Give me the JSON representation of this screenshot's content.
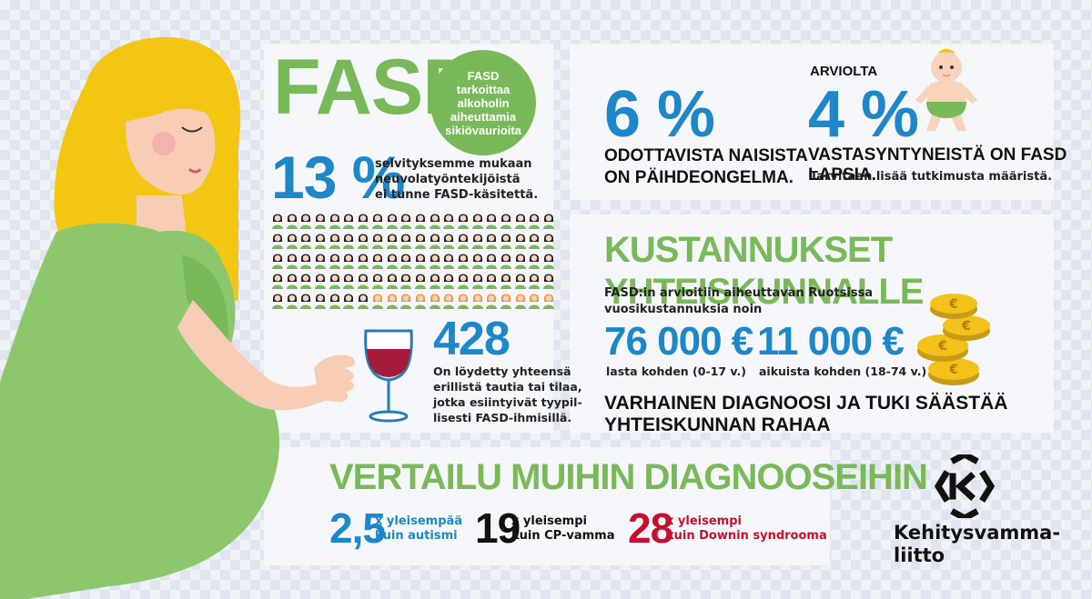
{
  "colors": {
    "green": "#79b95a",
    "blue": "#1d87c9",
    "red": "#c8102e",
    "orange": "#f0963c",
    "hair": "#f2c613"
  },
  "fasd": {
    "title": "FASD",
    "circle_text": "FASD tarkoittaa alkoholin aiheuttamia sikiövaurioita"
  },
  "stat13": {
    "value": "13 %",
    "text_lines": [
      "selvityksemme mukaan",
      "neuvolatyöntekijöistä",
      "ei tunne FASD-käsitettä."
    ]
  },
  "people_grid": {
    "total": 100,
    "highlighted": 13
  },
  "stat428": {
    "value": "428",
    "text_lines": [
      "On löydetty yhteensä",
      "erillistä tautia tai tilaa,",
      "jotka esiintyivät tyypil-",
      "lisesti FASD-ihmisillä."
    ]
  },
  "stat6": {
    "value": "6 %",
    "text_lines": [
      "ODOTTAVISTA NAISISTA",
      "ON PÄIHDEONGELMA."
    ]
  },
  "stat4": {
    "prefix": "ARVIOLTA",
    "value": "4 %",
    "headline": "VASTASYNTYNEISTÄ ON FASD LAPSIA.",
    "subtext": "Tarvitaan lisää tutkimusta määristä."
  },
  "costs": {
    "title": "KUSTANNUKSET YHTEISKUNNALLE",
    "intro_lines": [
      "FASD:in arvioitiin aiheuttavan Ruotsissa",
      "vuosikustannuksia noin"
    ],
    "child_value": "76 000 €",
    "child_label": "lasta kohden (0-17 v.)",
    "adult_value": "11 000 €",
    "adult_label": "aikuista kohden (18-74 v.)",
    "footer": "VARHAINEN DIAGNOOSI JA TUKI SÄÄSTÄÄ YHTEISKUNNAN RAHAA"
  },
  "comparison": {
    "title": "VERTAILU MUIHIN DIAGNOOSEIHIN",
    "items": [
      {
        "value": "2,5",
        "line1": "x yleisempää",
        "line2": "kuin autismi"
      },
      {
        "value": "19",
        "line1": "x yleisempi",
        "line2": "kuin CP-vamma"
      },
      {
        "value": "28",
        "line1": "x yleisempi",
        "line2": "kuin Downin syndrooma"
      }
    ]
  },
  "logo": {
    "line1": "Kehitysvamma-",
    "line2": "liitto"
  }
}
